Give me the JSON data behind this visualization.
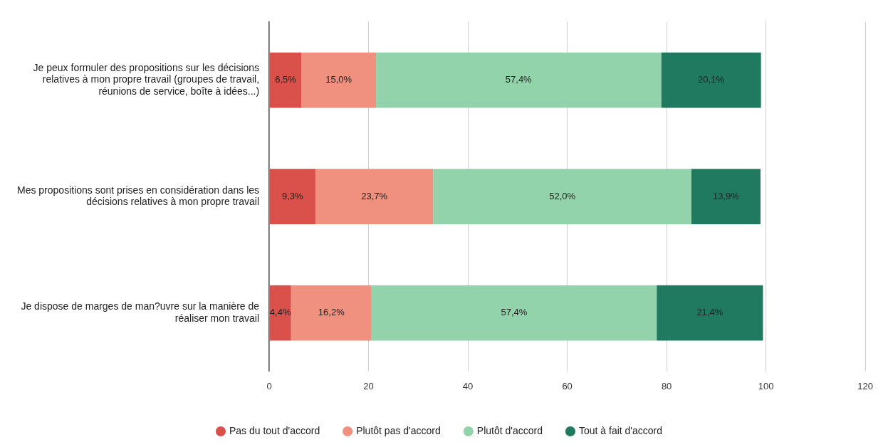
{
  "chart_data": {
    "type": "bar",
    "orientation": "horizontal",
    "stacked": true,
    "categories": [
      "Je peux formuler des propositions sur les décisions relatives à mon propre travail (groupes de travail, réunions de service, boîte à idées...)",
      "Mes propositions sont prises en considération dans les décisions relatives à mon propre travail",
      "Je dispose de marges de man?uvre sur la manière de réaliser mon travail"
    ],
    "series": [
      {
        "name": "Pas du tout d'accord",
        "color": "#d9514a",
        "values": [
          6.5,
          9.3,
          4.4
        ],
        "value_labels": [
          "6,5%",
          "9,3%",
          "4,4%"
        ]
      },
      {
        "name": "Plutôt pas d'accord",
        "color": "#f0907e",
        "values": [
          15.0,
          23.7,
          16.2
        ],
        "value_labels": [
          "15,0%",
          "23,7%",
          "16,2%"
        ]
      },
      {
        "name": "Plutôt d'accord",
        "color": "#93d3ab",
        "values": [
          57.4,
          52.0,
          57.4
        ],
        "value_labels": [
          "57,4%",
          "52,0%",
          "57,4%"
        ]
      },
      {
        "name": "Tout à fait d'accord",
        "color": "#1f7a60",
        "values": [
          20.1,
          13.9,
          21.4
        ],
        "value_labels": [
          "20,1%",
          "13,9%",
          "21,4%"
        ]
      }
    ],
    "xlim": [
      0,
      120
    ],
    "xticks": [
      0,
      20,
      40,
      60,
      80,
      100,
      120
    ],
    "grid": "x",
    "legend": "bottom"
  }
}
